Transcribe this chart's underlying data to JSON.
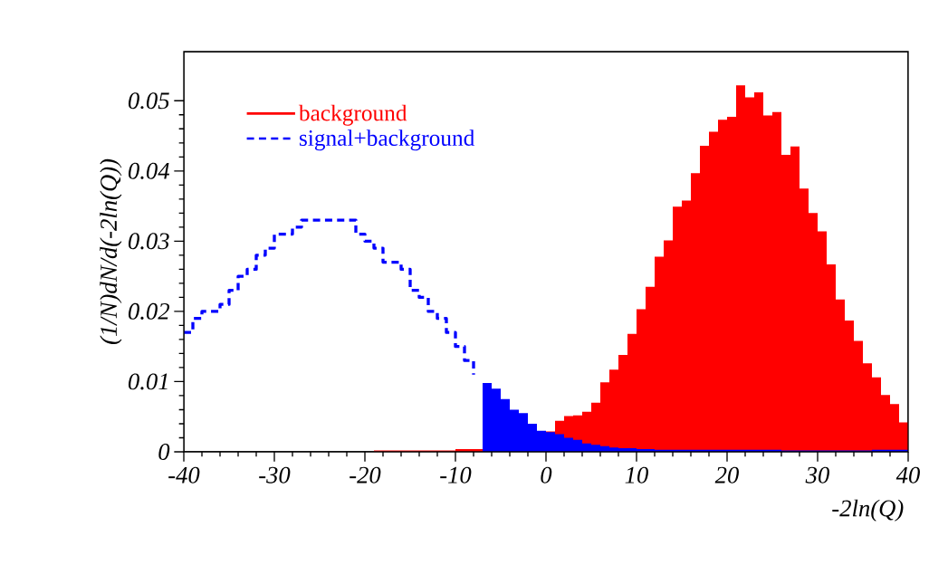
{
  "chart_data": {
    "type": "histogram",
    "xlabel": "-2ln(Q)",
    "ylabel": "(1/N)dN/d(-2ln(Q))",
    "series": [
      {
        "name": "background",
        "color": "#ff0000",
        "bins": [
          0,
          1,
          2,
          3,
          4,
          5,
          6,
          7,
          8,
          9,
          10,
          11,
          12,
          13,
          14,
          15,
          16,
          17,
          18,
          19,
          20,
          21,
          22,
          23,
          24,
          25,
          26,
          27,
          28,
          29,
          30,
          31,
          32,
          33,
          34,
          35,
          36,
          37,
          38,
          39,
          40
        ],
        "values": [
          0.0029,
          0.0044,
          0.0051,
          0.0052,
          0.0057,
          0.007,
          0.0099,
          0.0117,
          0.0138,
          0.0168,
          0.0203,
          0.0235,
          0.0278,
          0.0301,
          0.0349,
          0.0358,
          0.0397,
          0.0436,
          0.0456,
          0.0473,
          0.0477,
          0.0522,
          0.0505,
          0.0512,
          0.0479,
          0.0484,
          0.0423,
          0.0435,
          0.0375,
          0.034,
          0.0314,
          0.0267,
          0.0217,
          0.0187,
          0.0158,
          0.0126,
          0.0106,
          0.0081,
          0.0068,
          0.0042
        ]
      },
      {
        "color": "#ff0000",
        "bins": [
          -40,
          -39,
          -38,
          -37,
          -36,
          -35,
          -34,
          -33,
          -32,
          -31,
          -30,
          -29,
          -28,
          -27,
          -26,
          -25,
          -24,
          -23,
          -22,
          -21,
          -20,
          -19,
          -18,
          -17,
          -16,
          -15,
          -14,
          -13,
          -12,
          -11,
          -10,
          -9,
          -8,
          -7
        ],
        "values": [
          0,
          0,
          0,
          0,
          0,
          0,
          0,
          0,
          0,
          0,
          0,
          0,
          0,
          0,
          0,
          0,
          0,
          0,
          0,
          0,
          0,
          0.0002,
          0.0002,
          0.0002,
          0.0002,
          0.0002,
          0.0002,
          0.0002,
          0.0002,
          0.0002,
          0.0004,
          0.0004,
          0.0004
        ]
      },
      {
        "name": "signal+background",
        "type": "step",
        "line_style": "dashed",
        "color": "#0000ff",
        "x": [
          -40,
          -39,
          -38,
          -37,
          -36,
          -35,
          -34,
          -33,
          -32,
          -31,
          -30,
          -29,
          -28,
          -27,
          -26,
          -25,
          -24,
          -23,
          -22,
          -21,
          -20,
          -19,
          -18,
          -17,
          -16,
          -15,
          -14,
          -13,
          -12,
          -11,
          -10,
          -9,
          -8
        ],
        "values": [
          0.017,
          0.019,
          0.02,
          0.02,
          0.021,
          0.023,
          0.025,
          0.026,
          0.028,
          0.029,
          0.031,
          0.031,
          0.032,
          0.033,
          0.033,
          0.033,
          0.033,
          0.033,
          0.033,
          0.031,
          0.03,
          0.029,
          0.027,
          0.027,
          0.026,
          0.023,
          0.022,
          0.02,
          0.019,
          0.017,
          0.015,
          0.013,
          0.011
        ]
      },
      {
        "color": "#0000ff",
        "bins": [
          -7,
          -6,
          -5,
          -4,
          -3,
          -2,
          -1,
          0,
          1,
          2,
          3,
          4,
          5,
          6,
          7,
          8,
          9,
          10,
          11,
          12,
          13,
          14,
          15,
          16,
          17,
          18,
          19,
          20,
          21,
          22,
          23,
          24,
          25,
          26,
          27,
          28,
          29,
          30,
          31,
          32,
          33,
          34,
          35,
          36,
          37,
          38,
          39,
          40
        ],
        "values": [
          0.0098,
          0.009,
          0.0075,
          0.006,
          0.0055,
          0.004,
          0.003,
          0.0028,
          0.0025,
          0.002,
          0.0017,
          0.0012,
          0.001,
          0.0008,
          0.0006,
          0.0005,
          0.0005,
          0.0004,
          0.0004,
          0.0003,
          0.0003,
          0.0003,
          0.0003,
          0.0003,
          0.0003,
          0.0003,
          0.0003,
          0.0003,
          0.0003,
          0.0003,
          0.0003,
          0.0003,
          0.0003,
          0.0002,
          0.0002,
          0.0002,
          0.0002,
          0.0002,
          0.0002,
          0.0002,
          0.0002,
          0.0002,
          0.0002,
          0.0003,
          0.0003,
          0.0003,
          0.0003
        ]
      }
    ],
    "xlim": [
      -40,
      40
    ],
    "xticks": [
      -40,
      -30,
      -20,
      -10,
      0,
      10,
      20,
      30,
      40
    ],
    "ylim": [
      0,
      0.057
    ],
    "yticks": [
      0,
      0.01,
      0.02,
      0.03,
      0.04,
      0.05
    ],
    "legend": "top left"
  }
}
